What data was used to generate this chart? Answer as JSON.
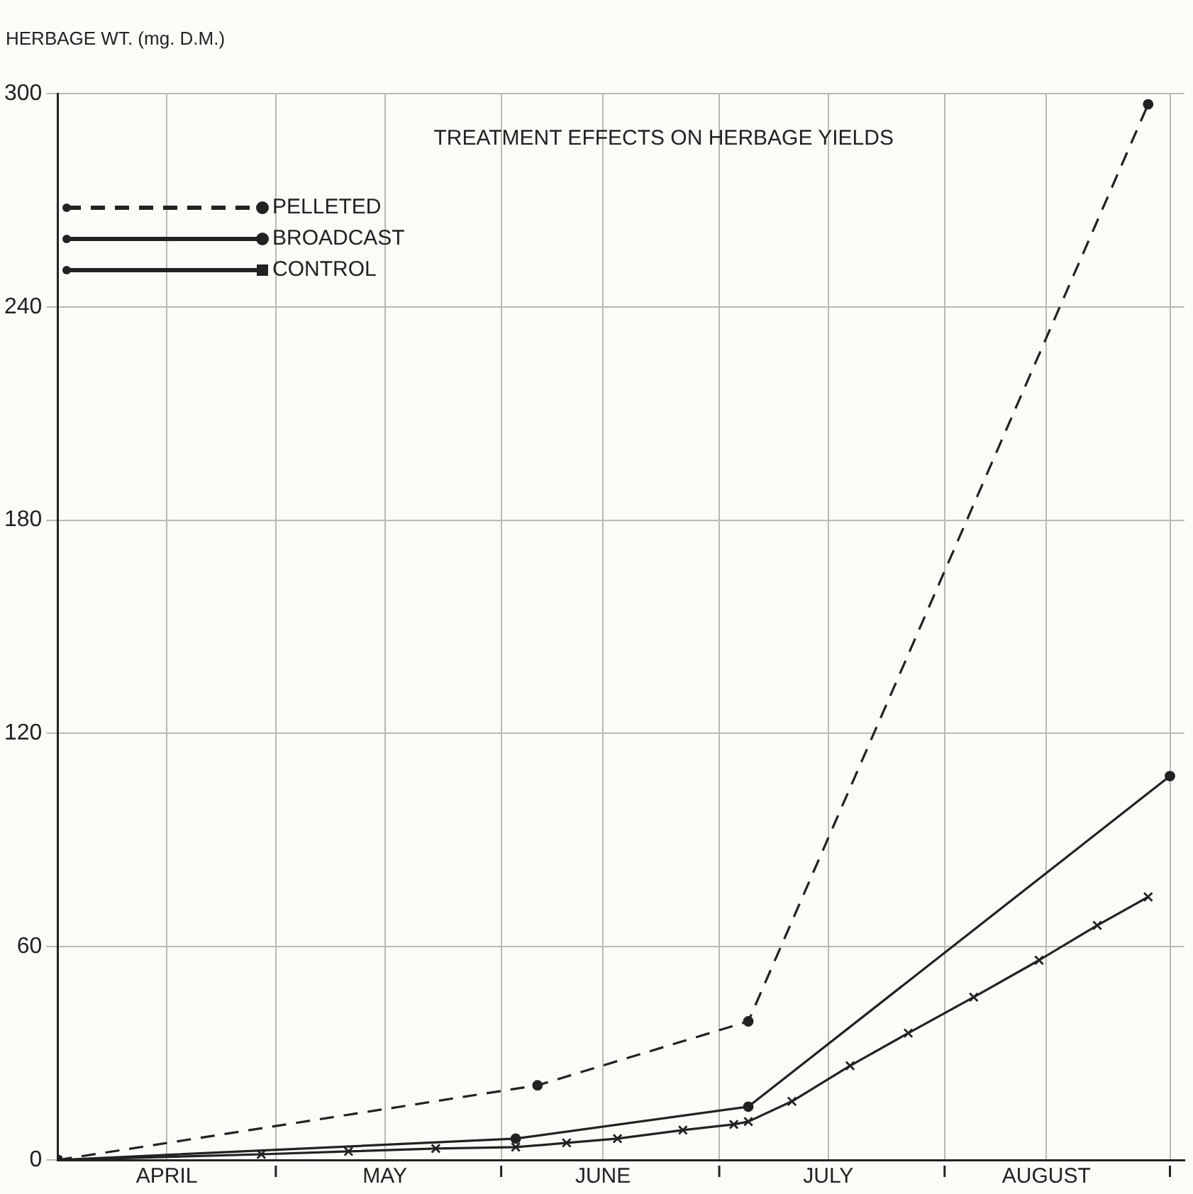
{
  "chart_data": {
    "type": "line",
    "title": "TREATMENT EFFECTS ON HERBAGE YIELDS",
    "ylabel": "HERBAGE WT. (mg. D.M.)",
    "xlim": [
      "--04-01",
      "--09-03"
    ],
    "xticks": [
      {
        "value": "--04-16",
        "label": "APRIL"
      },
      {
        "value": "--05-01",
        "label": null
      },
      {
        "value": "--05-16",
        "label": "MAY"
      },
      {
        "value": "--06-01",
        "label": null
      },
      {
        "value": "--06-15",
        "label": "JUNE"
      },
      {
        "value": "--07-01",
        "label": null
      },
      {
        "value": "--07-16",
        "label": "JULY"
      },
      {
        "value": "--08-01",
        "label": null
      },
      {
        "value": "--08-15",
        "label": "AUGUST"
      },
      {
        "value": "--09-01",
        "label": null
      }
    ],
    "ylim": [
      0,
      300
    ],
    "yticks": [
      0,
      60,
      120,
      180,
      240,
      300
    ],
    "grid": true,
    "legend": "top left",
    "series": [
      {
        "name": "PELLETED",
        "color": "#222222",
        "line_style": "dashed",
        "marker": "circle",
        "x": [
          "--04-01",
          "--06-06",
          "--07-05",
          "--08-29"
        ],
        "values": [
          0,
          21,
          39,
          297
        ]
      },
      {
        "name": "BROADCAST",
        "color": "#222222",
        "line_style": "solid",
        "marker": "circle",
        "x": [
          "--04-01",
          "--06-03",
          "--07-05",
          "--09-01"
        ],
        "values": [
          0,
          6,
          15,
          108
        ]
      },
      {
        "name": "CONTROL",
        "color": "#222222",
        "line_style": "solid",
        "marker": "cross",
        "x": [
          "--04-01",
          "--04-29",
          "--05-11",
          "--05-23",
          "--06-03",
          "--06-10",
          "--06-17",
          "--06-26",
          "--07-03",
          "--07-05",
          "--07-11",
          "--07-19",
          "--07-27",
          "--08-05",
          "--08-14",
          "--08-22",
          "--08-29"
        ],
        "values": [
          0,
          1.6,
          2.4,
          3.2,
          3.6,
          4.8,
          6,
          8.4,
          10,
          10.8,
          16.5,
          26.5,
          35.7,
          45.8,
          56.2,
          66,
          74
        ]
      }
    ]
  }
}
